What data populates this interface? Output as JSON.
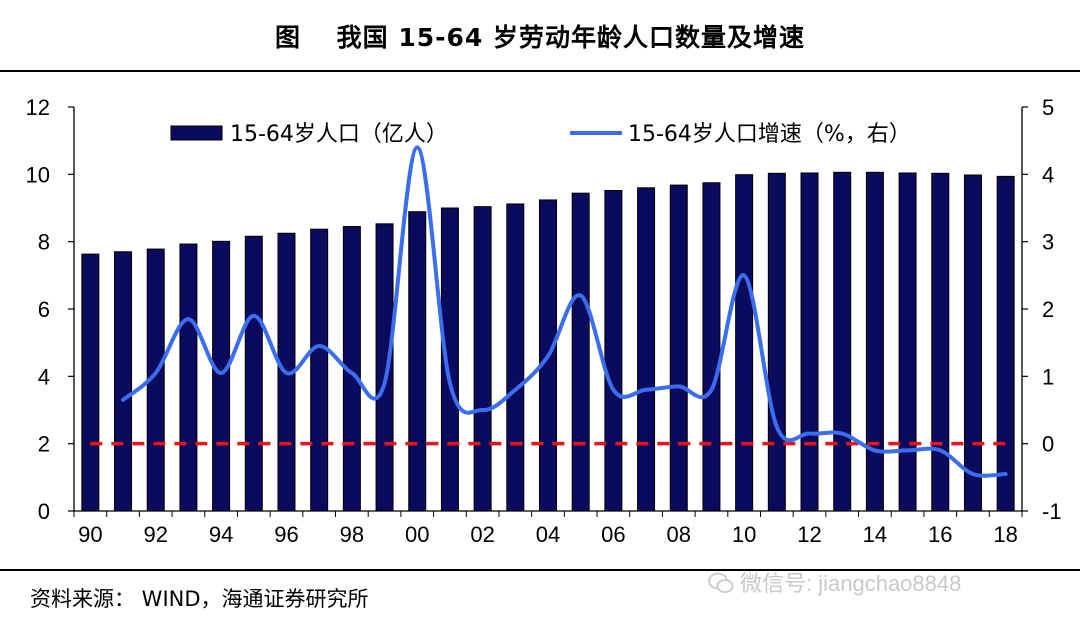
{
  "header": {
    "title": "图　 我国 15-64 岁劳动年龄人口数量及增速"
  },
  "footer": {
    "source": "资料来源： WIND，海通证券研究所",
    "watermark": "微信号: jiangchao8848"
  },
  "chart_data": {
    "type": "bar",
    "categories": [
      "90",
      "91",
      "92",
      "93",
      "94",
      "95",
      "96",
      "97",
      "98",
      "99",
      "00",
      "01",
      "02",
      "03",
      "04",
      "05",
      "06",
      "07",
      "08",
      "09",
      "10",
      "11",
      "12",
      "13",
      "14",
      "15",
      "16",
      "17",
      "18"
    ],
    "x_tick_labels": [
      "90",
      "92",
      "94",
      "96",
      "98",
      "00",
      "02",
      "04",
      "06",
      "08",
      "10",
      "12",
      "14",
      "16",
      "18"
    ],
    "y_left": {
      "ylim": [
        0,
        12
      ],
      "ticks": [
        "0",
        "2",
        "4",
        "6",
        "8",
        "10",
        "12"
      ]
    },
    "y_right": {
      "ylim": [
        -1,
        5
      ],
      "ticks": [
        "-1",
        "0",
        "1",
        "2",
        "3",
        "4",
        "5"
      ]
    },
    "legend": {
      "placement": "top"
    },
    "series": [
      {
        "name": "15-64岁人口（亿人）",
        "type": "bar",
        "axis": "left",
        "color": "#0a0a5e",
        "values": [
          7.63,
          7.7,
          7.78,
          7.93,
          8.01,
          8.16,
          8.25,
          8.37,
          8.45,
          8.53,
          8.89,
          9.0,
          9.04,
          9.12,
          9.24,
          9.44,
          9.52,
          9.6,
          9.68,
          9.75,
          9.99,
          10.03,
          10.04,
          10.06,
          10.06,
          10.04,
          10.03,
          9.98,
          9.94
        ]
      },
      {
        "name": "15-64岁人口增速（%，右）",
        "type": "line",
        "axis": "right",
        "color": "#3a6df0",
        "values": [
          null,
          0.65,
          1.05,
          1.85,
          1.05,
          1.9,
          1.05,
          1.45,
          1.05,
          0.9,
          4.4,
          0.9,
          0.5,
          0.8,
          1.3,
          2.2,
          0.8,
          0.8,
          0.85,
          0.8,
          2.5,
          0.25,
          0.15,
          0.15,
          -0.1,
          -0.1,
          -0.1,
          -0.45,
          -0.45
        ]
      },
      {
        "type": "reference-line",
        "axis": "right",
        "value": 0,
        "color": "#e8141b",
        "style": "dashed"
      }
    ]
  }
}
